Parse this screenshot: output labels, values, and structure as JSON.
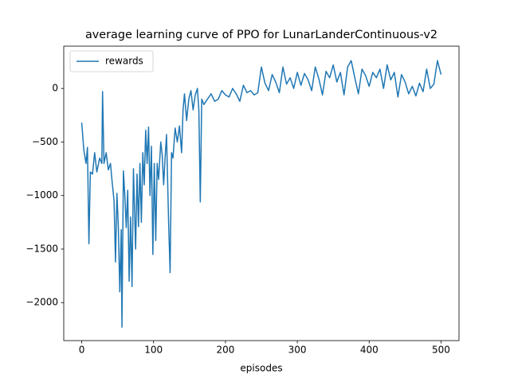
{
  "chart_data": {
    "type": "line",
    "title": "average learning curve of PPO for LunarLanderContinuous-v2",
    "xlabel": "episodes",
    "x": [
      0,
      3,
      6,
      8,
      10,
      12,
      15,
      18,
      21,
      25,
      28,
      29,
      31,
      34,
      37,
      40,
      42,
      45,
      47,
      49,
      51,
      53,
      55,
      56,
      58,
      60,
      62,
      64,
      66,
      68,
      70,
      72,
      75,
      77,
      79,
      81,
      83,
      85,
      87,
      89,
      91,
      93,
      95,
      97,
      99,
      101,
      103,
      105,
      107,
      110,
      112,
      114,
      116,
      118,
      121,
      123,
      125,
      127,
      130,
      133,
      136,
      139,
      141,
      143,
      146,
      149,
      152,
      155,
      158,
      161,
      163,
      165,
      167,
      170,
      175,
      180,
      185,
      190,
      195,
      200,
      205,
      210,
      215,
      220,
      225,
      230,
      235,
      240,
      245,
      250,
      255,
      260,
      265,
      270,
      275,
      280,
      285,
      290,
      295,
      300,
      305,
      310,
      315,
      320,
      325,
      330,
      335,
      340,
      345,
      350,
      355,
      360,
      365,
      370,
      375,
      380,
      385,
      390,
      395,
      400,
      405,
      410,
      415,
      420,
      425,
      430,
      435,
      440,
      445,
      450,
      455,
      460,
      465,
      470,
      475,
      480,
      485,
      490,
      495,
      500
    ],
    "series": [
      {
        "name": "rewards",
        "color": "#1f77b4",
        "values": [
          -320,
          -580,
          -700,
          -550,
          -1450,
          -780,
          -800,
          -600,
          -780,
          -650,
          -700,
          -30,
          -700,
          -600,
          -760,
          -700,
          -850,
          -1050,
          -1620,
          -980,
          -1300,
          -1900,
          -1320,
          -2230,
          -770,
          -1000,
          -1300,
          -950,
          -1800,
          -1200,
          -1850,
          -750,
          -1500,
          -800,
          -1290,
          -700,
          -1250,
          -600,
          -900,
          -390,
          -700,
          -360,
          -1000,
          -540,
          -1550,
          -700,
          -1420,
          -700,
          -850,
          -500,
          -620,
          -900,
          -650,
          -430,
          -1270,
          -1720,
          -600,
          -650,
          -370,
          -500,
          -350,
          -600,
          -200,
          -50,
          -300,
          -100,
          -20,
          -200,
          -60,
          0,
          -200,
          -1060,
          -100,
          -150,
          -100,
          -50,
          -120,
          -100,
          -20,
          -60,
          -80,
          0,
          -50,
          -120,
          30,
          -40,
          -20,
          -60,
          -40,
          200,
          50,
          -20,
          130,
          60,
          -40,
          200,
          40,
          100,
          0,
          150,
          30,
          140,
          80,
          -20,
          200,
          90,
          -60,
          160,
          100,
          220,
          60,
          150,
          -60,
          200,
          260,
          100,
          -50,
          180,
          120,
          20,
          150,
          100,
          180,
          0,
          220,
          80,
          150,
          -80,
          130,
          60,
          -50,
          20,
          -70,
          50,
          -30,
          180,
          0,
          40,
          260,
          130
        ]
      }
    ],
    "xlim": [
      -25,
      525
    ],
    "ylim": [
      -2355,
      395
    ],
    "xticks": [
      0,
      100,
      200,
      300,
      400,
      500
    ],
    "yticks": [
      {
        "value": -2000,
        "label": "−2000"
      },
      {
        "value": -1500,
        "label": "−1500"
      },
      {
        "value": -1000,
        "label": "−1000"
      },
      {
        "value": -500,
        "label": "−500"
      },
      0
    ],
    "legend": "upper left"
  }
}
